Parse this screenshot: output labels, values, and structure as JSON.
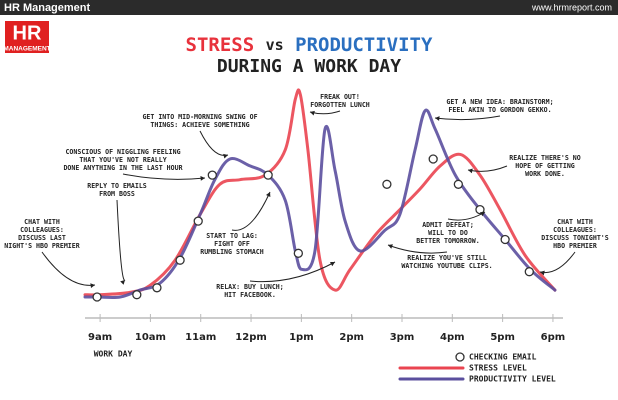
{
  "header": {
    "left": "HR Management",
    "right": "www.hrmreport.com",
    "logo": [
      "HR",
      "MANAGEMENT"
    ]
  },
  "chart_data": {
    "type": "line",
    "title": [
      "STRESS",
      "vs",
      "PRODUCTIVITY"
    ],
    "subtitle": "DURING A WORK DAY",
    "x_label": "WORK DAY",
    "xlim": [
      8.7,
      18.2
    ],
    "ylim": [
      0,
      100
    ],
    "xticks": [
      {
        "value": 9,
        "label": "9am"
      },
      {
        "value": 10,
        "label": "10am"
      },
      {
        "value": 11,
        "label": "11am"
      },
      {
        "value": 12,
        "label": "12pm"
      },
      {
        "value": 13,
        "label": "1pm"
      },
      {
        "value": 14,
        "label": "2pm"
      },
      {
        "value": 15,
        "label": "3pm"
      },
      {
        "value": 16,
        "label": "4pm"
      },
      {
        "value": 17,
        "label": "5pm"
      },
      {
        "value": 18,
        "label": "6pm"
      }
    ],
    "series": [
      {
        "name": "STRESS LEVEL",
        "type": "line",
        "color": "#ea4450",
        "x": [
          8.7,
          9.0,
          9.59,
          9.99,
          10.49,
          10.99,
          11.38,
          11.78,
          12.28,
          12.68,
          12.88,
          12.98,
          13.13,
          13.37,
          13.67,
          13.97,
          14.47,
          14.96,
          15.36,
          15.76,
          16.16,
          16.55,
          16.95,
          17.45,
          18.04
        ],
        "values": [
          11,
          11,
          12,
          15,
          26,
          46,
          59,
          61,
          63,
          74,
          96,
          98,
          74,
          26,
          13,
          22,
          37,
          48,
          57,
          67,
          72,
          63,
          48,
          28,
          13
        ]
      },
      {
        "name": "PRODUCTIVITY LEVEL",
        "type": "line",
        "color": "#5b4f9e",
        "x": [
          8.7,
          8.96,
          9.4,
          9.79,
          10.19,
          10.59,
          10.99,
          11.28,
          11.58,
          11.98,
          12.34,
          12.68,
          12.88,
          13.01,
          13.27,
          13.47,
          13.67,
          13.87,
          14.17,
          14.66,
          14.96,
          15.26,
          15.46,
          15.66,
          16.06,
          16.55,
          17.05,
          17.55,
          18.04
        ],
        "values": [
          10,
          10,
          10,
          13,
          16,
          27,
          46,
          61,
          70,
          67,
          63,
          52,
          30,
          22,
          30,
          83,
          65,
          43,
          30,
          39,
          46,
          74,
          91,
          83,
          63,
          48,
          35,
          22,
          13
        ]
      },
      {
        "name": "CHECKING EMAIL",
        "type": "scatter",
        "color": "#333333",
        "x": [
          8.94,
          9.73,
          10.13,
          10.59,
          10.95,
          11.23,
          12.34,
          12.94,
          14.7,
          15.62,
          16.12,
          16.55,
          17.05,
          17.53
        ],
        "values": [
          10,
          11,
          14,
          26,
          43,
          63,
          63,
          29,
          59,
          70,
          59,
          48,
          35,
          21
        ]
      }
    ],
    "annotations": [
      [
        "CHAT WITH",
        "COLLEAGUES:",
        "DISCUSS LAST",
        "NIGHT'S HBO PREMIER"
      ],
      [
        "REPLY TO EMAILS",
        "FROM BOSS"
      ],
      [
        "CONSCIOUS OF NIGGLING FEELING",
        "THAT YOU'VE NOT REALLY",
        "DONE ANYTHING IN THE LAST HOUR"
      ],
      [
        "GET INTO MID-MORNING SWING OF",
        "THINGS: ACHIEVE SOMETHING"
      ],
      [
        "FREAK OUT!",
        "FORGOTTEN LUNCH"
      ],
      [
        "START TO LAG:",
        "FIGHT OFF",
        "RUMBLING STOMACH"
      ],
      [
        "RELAX: BUY LUNCH;",
        "HIT FACEBOOK."
      ],
      [
        "GET A NEW IDEA: BRAINSTORM;",
        "FEEL AKIN TO GORDON GEKKO."
      ],
      [
        "REALIZE THERE'S NO",
        "HOPE OF GETTING",
        "WORK DONE."
      ],
      [
        "ADMIT DEFEAT;",
        "WILL TO DO",
        "BETTER TOMORROW."
      ],
      [
        "REALIZE YOU'VE STILL",
        "WATCHING YOUTUBE CLIPS."
      ],
      [
        "CHAT WITH",
        "COLLEAGUES:",
        "DISCUSS TONIGHT'S",
        "HBO PREMIER"
      ]
    ]
  }
}
